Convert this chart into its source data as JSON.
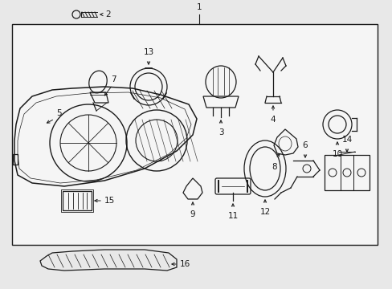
{
  "bg_color": "#e8e8e8",
  "box_color": "#e8e8e8",
  "line_color": "#1a1a1a",
  "label_color": "#000000",
  "fig_width": 4.89,
  "fig_height": 3.6,
  "dpi": 100
}
